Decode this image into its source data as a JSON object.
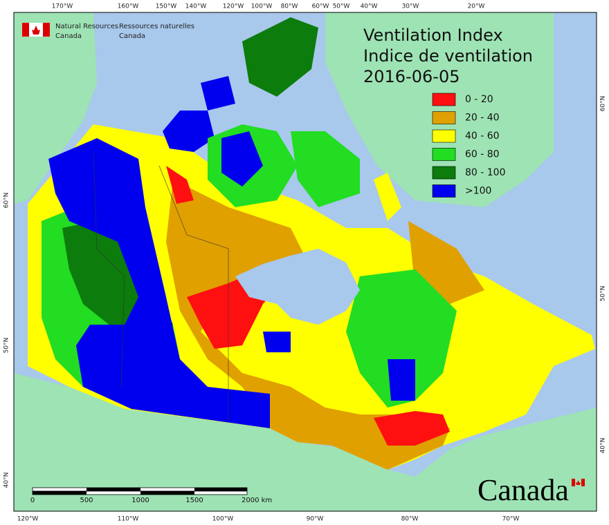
{
  "header": {
    "agency_en": [
      "Natural Resources",
      "Canada"
    ],
    "agency_fr": [
      "Ressources naturelles",
      "Canada"
    ]
  },
  "title": {
    "lines": [
      "Ventilation Index",
      "Indice de ventilation",
      "2016-06-05"
    ]
  },
  "legend": {
    "items": [
      {
        "label": "0 - 20",
        "color": "#ff1010"
      },
      {
        "label": "20 - 40",
        "color": "#e0a000"
      },
      {
        "label": "40 - 60",
        "color": "#ffff00"
      },
      {
        "label": "60 - 80",
        "color": "#22dd22"
      },
      {
        "label": "80 - 100",
        "color": "#0c7c0c"
      },
      {
        "label": ">100",
        "color": "#0000ee"
      }
    ]
  },
  "graticule": {
    "top": [
      "170°W",
      "160°W",
      "150°W",
      "140°W",
      "120°W",
      "100°W",
      "80°W",
      "60°W",
      "50°W",
      "40°W",
      "30°W",
      "20°W"
    ],
    "bottom": [
      "120°W",
      "110°W",
      "100°W",
      "90°W",
      "80°W",
      "70°W"
    ],
    "left": [
      "60°N",
      "50°N",
      "40°N"
    ],
    "right": [
      "60°N",
      "50°N",
      "40°N"
    ]
  },
  "scale_bar": {
    "labels": [
      "0",
      "500",
      "1000",
      "1500",
      "2000 km"
    ]
  },
  "wordmark": "Canada"
}
